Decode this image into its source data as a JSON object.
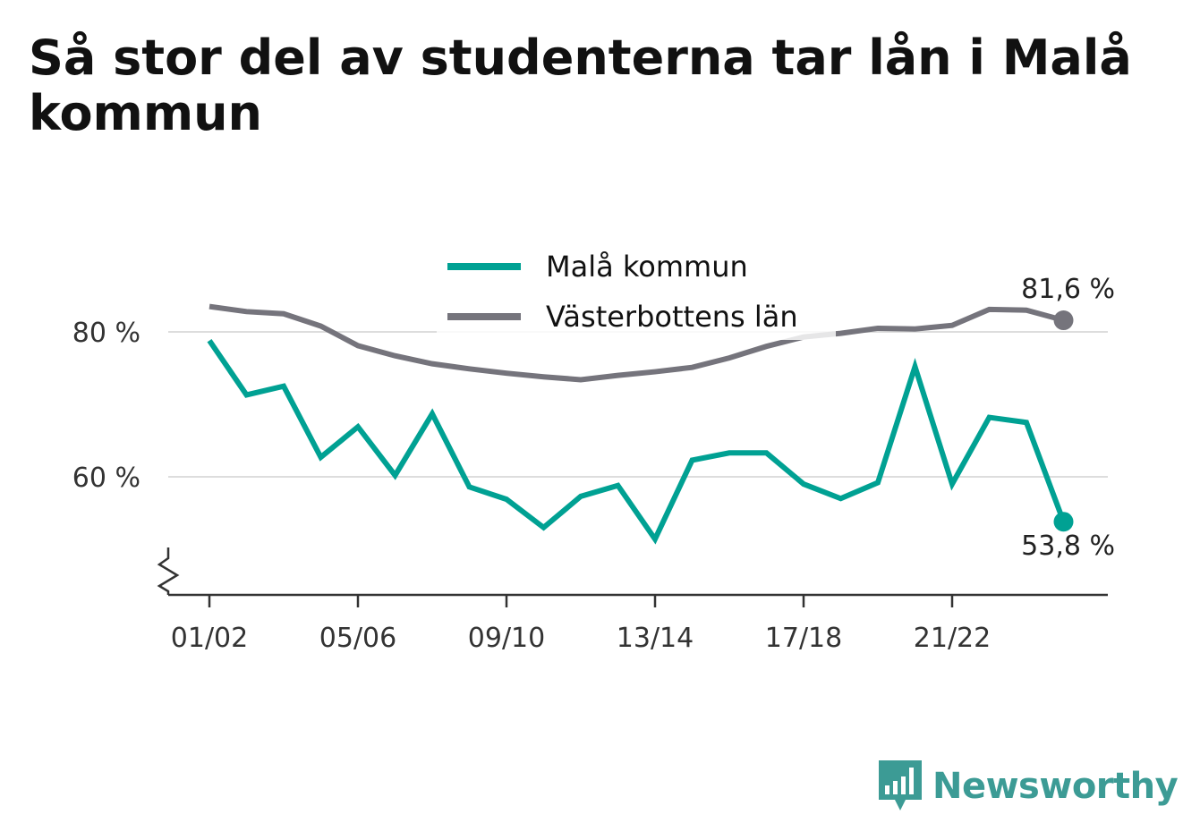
{
  "title": "Så stor del av studenterna tar lån i Malå kommun",
  "brand": {
    "name": "Newsworthy",
    "icon": "newsworthy-logo-icon"
  },
  "colors": {
    "series_mala": "#00a193",
    "series_lan": "#75747c",
    "grid": "#dddddd",
    "axis": "#333333",
    "brand": "#3c9b95"
  },
  "chart_data": {
    "type": "line",
    "title": "Så stor del av studenterna tar lån i Malå kommun",
    "xlabel": "",
    "ylabel": "",
    "x": [
      "01/02",
      "02/03",
      "03/04",
      "04/05",
      "05/06",
      "06/07",
      "07/08",
      "08/09",
      "09/10",
      "10/11",
      "11/12",
      "12/13",
      "13/14",
      "14/15",
      "15/16",
      "16/17",
      "17/18",
      "18/19",
      "19/20",
      "20/21",
      "21/22",
      "22/23",
      "23/24",
      "24/25"
    ],
    "x_tick_labels": [
      "01/02",
      "05/06",
      "09/10",
      "13/14",
      "17/18",
      "21/22"
    ],
    "y_ticks": [
      60,
      80
    ],
    "y_tick_labels": [
      "60 %",
      "80 %"
    ],
    "ylim": [
      44,
      90
    ],
    "y_axis_break": true,
    "grid": true,
    "legend_position": "top-center",
    "series": [
      {
        "name": "Malå kommun",
        "color": "#00a193",
        "values": [
          78.8,
          71.3,
          72.5,
          62.7,
          66.9,
          60.2,
          68.7,
          58.6,
          56.9,
          53.0,
          57.3,
          58.8,
          51.4,
          62.3,
          63.3,
          63.3,
          59.0,
          57.0,
          59.2,
          75.2,
          59.0,
          68.2,
          67.5,
          53.8
        ]
      },
      {
        "name": "Västerbottens län",
        "color": "#75747c",
        "values": [
          83.5,
          82.8,
          82.5,
          80.8,
          78.1,
          76.7,
          75.6,
          74.9,
          74.3,
          73.8,
          73.4,
          74.0,
          74.5,
          75.1,
          76.4,
          78.0,
          79.3,
          79.8,
          80.5,
          80.4,
          80.9,
          83.1,
          83.0,
          81.6
        ]
      }
    ],
    "end_labels": [
      "81,6 %",
      "53,8 %"
    ]
  }
}
